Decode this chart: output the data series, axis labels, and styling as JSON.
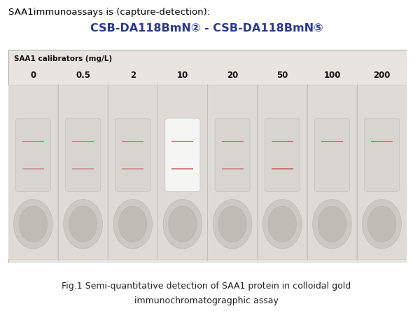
{
  "title_line1": "SAA1immunoassays is (capture-detection):",
  "title_line2": "CSB-DA118BmN② - CSB-DA118BmN⑤",
  "calibrators_label": "SAA1 calibrators (mg/L)",
  "concentrations": [
    "0",
    "0.5",
    "2",
    "10",
    "20",
    "50",
    "100",
    "200"
  ],
  "fig_caption_line1": "Fig.1 Semi-quantitative detection of SAA1 protein in colloidal gold",
  "fig_caption_line2": "immunochromatogragphic assay",
  "n_strips": 8,
  "photo_bg": "#e8e5e0",
  "strip_bg": "#dedad5",
  "strip_border": "#c8c4be",
  "window_bg_normal": "#d8d5d0",
  "window_bg_bright": "#f5f5f3",
  "line_color": "#c05050",
  "well_bg": "#ccc8c2",
  "well_inner_bg": "#bfbbb5",
  "control_line_visible": [
    true,
    true,
    true,
    true,
    true,
    true,
    true,
    true
  ],
  "test_line_visible": [
    true,
    true,
    true,
    true,
    true,
    true,
    false,
    false
  ],
  "control_line_alpha": [
    0.65,
    0.65,
    0.7,
    0.8,
    0.75,
    0.8,
    0.8,
    0.8
  ],
  "test_line_alpha": [
    0.55,
    0.55,
    0.6,
    0.9,
    0.7,
    0.9,
    0.0,
    0.9
  ],
  "bright_window_indices": [
    3
  ],
  "separator_color": "#c0bdb8"
}
